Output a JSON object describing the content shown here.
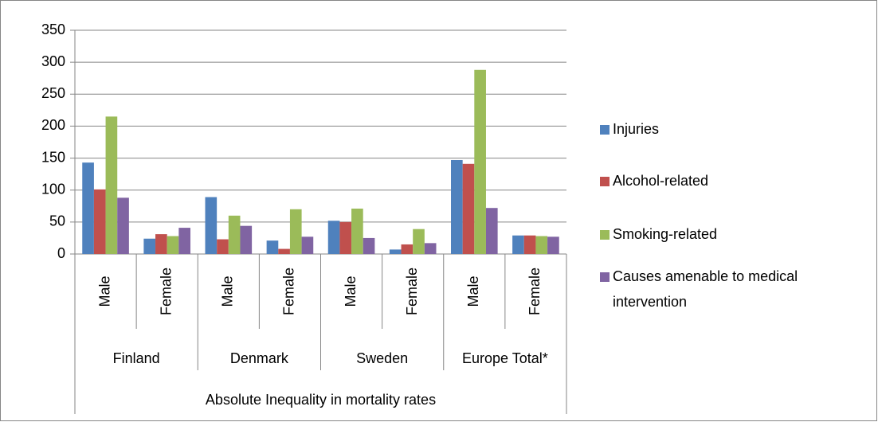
{
  "chart_data": {
    "type": "bar",
    "categories": [
      "Male",
      "Female",
      "Male",
      "Female",
      "Male",
      "Female",
      "Male",
      "Female"
    ],
    "groups": [
      "Finland",
      "Denmark",
      "Sweden",
      "Europe Total*"
    ],
    "group_axis_label": "Absolute Inequality in mortality rates",
    "series": [
      {
        "name": "Injuries",
        "color": "#4F81BD",
        "values": [
          143,
          24,
          89,
          21,
          52,
          7,
          147,
          29
        ]
      },
      {
        "name": "Alcohol-related",
        "color": "#C0504D",
        "values": [
          101,
          31,
          23,
          8,
          50,
          15,
          141,
          29
        ]
      },
      {
        "name": "Smoking-related",
        "color": "#9BBB59",
        "values": [
          215,
          28,
          60,
          70,
          71,
          39,
          288,
          28
        ]
      },
      {
        "name": "Causes amenable to medical intervention",
        "color": "#8064A2",
        "values": [
          88,
          41,
          44,
          27,
          25,
          17,
          72,
          27
        ]
      }
    ],
    "ylim": [
      0,
      350
    ],
    "yticks": [
      0,
      50,
      100,
      150,
      200,
      250,
      300,
      350
    ],
    "grid": true,
    "legend": "right"
  }
}
